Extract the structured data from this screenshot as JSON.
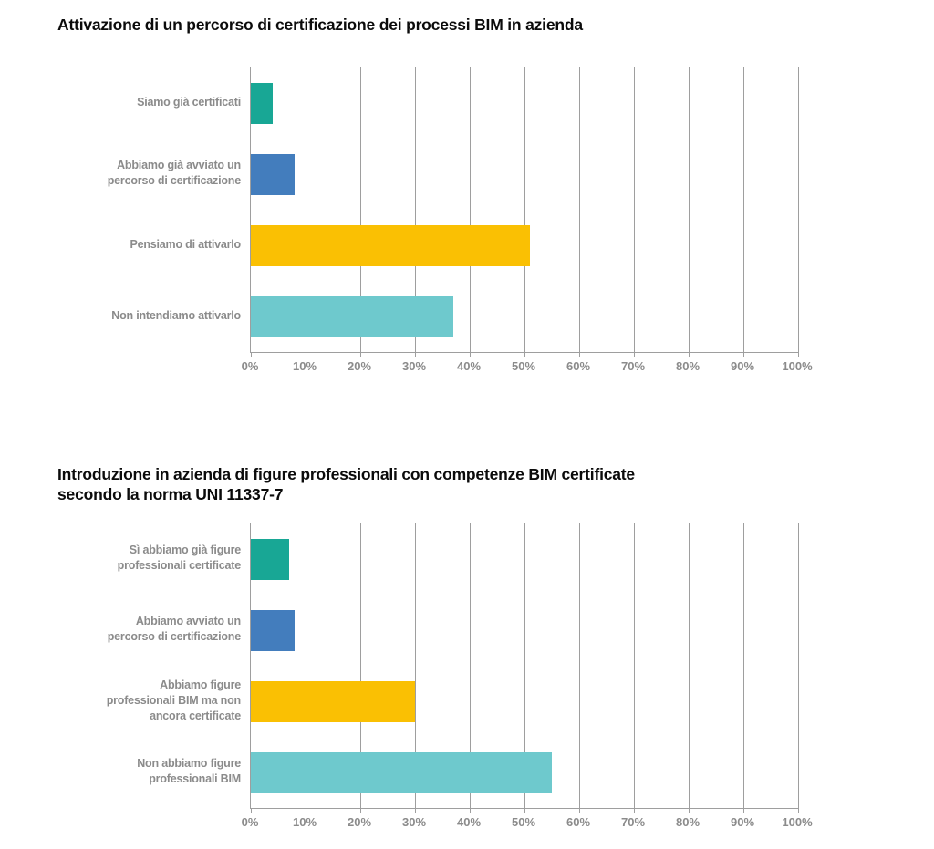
{
  "page": {
    "background": "#ffffff"
  },
  "styles": {
    "grid_color": "#9e9e9e",
    "axis_label_color": "#8b8b8b",
    "title_color": "#0b0b0b"
  },
  "chart_data": [
    {
      "type": "bar",
      "orientation": "horizontal",
      "title": "Attivazione di un percorso di certificazione dei processi BIM in azienda",
      "categories": [
        "Siamo già certificati",
        "Abbiamo già avviato un\npercorso di certificazione",
        "Pensiamo di attivarlo",
        "Non intendiamo attivarlo"
      ],
      "values": [
        4,
        8,
        51,
        37
      ],
      "unit": "%",
      "bar_colors": [
        "#18a795",
        "#437dbd",
        "#fac003",
        "#6ec9cd"
      ],
      "xlim": [
        0,
        100
      ],
      "tick_step": 10,
      "x_tick_labels": [
        "0%",
        "10%",
        "20%",
        "30%",
        "40%",
        "50%",
        "60%",
        "70%",
        "80%",
        "90%",
        "100%"
      ],
      "grid": true,
      "legend": false,
      "xlabel": "",
      "ylabel": ""
    },
    {
      "type": "bar",
      "orientation": "horizontal",
      "title": "Introduzione in azienda di figure professionali con competenze BIM certificate\nsecondo la norma UNI 11337-7",
      "categories": [
        "Sì abbiamo già figure\nprofessionali certificate",
        "Abbiamo avviato un\npercorso di certificazione",
        "Abbiamo figure\nprofessionali BIM ma non\nancora certificate",
        "Non abbiamo figure\nprofessionali BIM"
      ],
      "values": [
        7,
        8,
        30,
        55
      ],
      "unit": "%",
      "bar_colors": [
        "#18a795",
        "#437dbd",
        "#fac003",
        "#6ec9cd"
      ],
      "xlim": [
        0,
        100
      ],
      "tick_step": 10,
      "x_tick_labels": [
        "0%",
        "10%",
        "20%",
        "30%",
        "40%",
        "50%",
        "60%",
        "70%",
        "80%",
        "90%",
        "100%"
      ],
      "grid": true,
      "legend": false,
      "xlabel": "",
      "ylabel": ""
    }
  ]
}
